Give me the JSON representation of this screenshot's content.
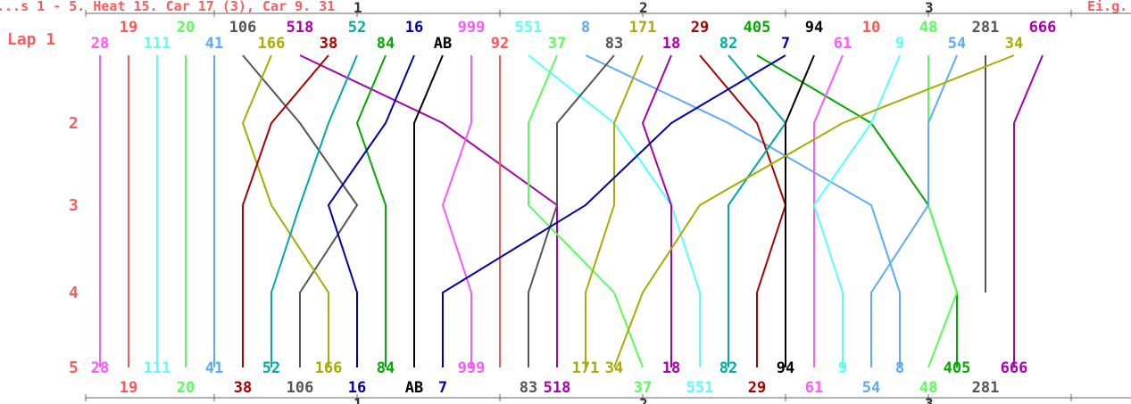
{
  "chart_data": {
    "type": "line",
    "header_left": "...s 1 - 5. Heat 15. Car 17 (3), Car 9. 31",
    "header_right": "Ei.g.",
    "lap_prefix": "Lap",
    "laps": [
      1,
      2,
      3,
      4,
      5
    ],
    "lap_labels": [
      "Lap 1",
      "2",
      "3",
      "4",
      "5"
    ],
    "section_ticks": [
      "1",
      "2",
      "3"
    ],
    "start_order": [
      "28",
      "19",
      "111",
      "20",
      "41",
      "106",
      "166",
      "518",
      "38",
      "52",
      "84",
      "16",
      "AB",
      "999",
      "92",
      "551",
      "37",
      "8",
      "83",
      "171",
      "18",
      "29",
      "82",
      "405",
      "7",
      "94",
      "61",
      "10",
      "9",
      "48",
      "54",
      "281",
      "34",
      "666"
    ],
    "finish_order": [
      "28",
      "19",
      "111",
      "20",
      "41",
      "38",
      "52",
      "106",
      "166",
      "16",
      "84",
      "AB",
      "7",
      "999",
      "92",
      "83",
      "518",
      "171",
      "34",
      "37",
      "18",
      "551",
      "82",
      "29",
      "94",
      "61",
      "9",
      "54",
      "8",
      "48",
      "405",
      "281",
      "666"
    ],
    "series": [
      {
        "name": "28",
        "color": "#ff55ff",
        "positions": [
          1,
          1,
          1,
          1,
          1
        ]
      },
      {
        "name": "19",
        "color": "#ff5555",
        "positions": [
          2,
          2,
          2,
          2,
          2
        ]
      },
      {
        "name": "111",
        "color": "#55ffff",
        "positions": [
          3,
          3,
          3,
          3,
          3
        ]
      },
      {
        "name": "20",
        "color": "#55ff55",
        "positions": [
          4,
          4,
          4,
          4,
          4
        ]
      },
      {
        "name": "41",
        "color": "#5aaaff",
        "positions": [
          5,
          5,
          5,
          5,
          5
        ]
      },
      {
        "name": "106",
        "color": "#555555",
        "positions": [
          6,
          8,
          10,
          8,
          8
        ]
      },
      {
        "name": "166",
        "color": "#aaaa00",
        "positions": [
          7,
          6,
          7,
          9,
          9
        ]
      },
      {
        "name": "518",
        "color": "#aa00aa",
        "positions": [
          8,
          13,
          17,
          17,
          17
        ]
      },
      {
        "name": "38",
        "color": "#aa0000",
        "positions": [
          9,
          7,
          6,
          6,
          6
        ]
      },
      {
        "name": "52",
        "color": "#00aaaa",
        "positions": [
          10,
          9,
          8,
          7,
          7
        ]
      },
      {
        "name": "84",
        "color": "#00aa00",
        "positions": [
          11,
          10,
          11,
          11,
          11
        ]
      },
      {
        "name": "16",
        "color": "#0000aa",
        "positions": [
          12,
          11,
          9,
          10,
          10
        ]
      },
      {
        "name": "AB",
        "color": "#000000",
        "positions": [
          13,
          12,
          12,
          12,
          12
        ]
      },
      {
        "name": "999",
        "color": "#ff55ff",
        "positions": [
          14,
          14,
          13,
          14,
          14
        ]
      },
      {
        "name": "92",
        "color": "#ff5555",
        "positions": [
          15,
          15,
          15,
          15,
          15
        ]
      },
      {
        "name": "551",
        "color": "#55ffff",
        "positions": [
          16,
          19,
          21,
          22,
          22
        ]
      },
      {
        "name": "37",
        "color": "#55ff55",
        "positions": [
          17,
          16,
          16,
          19,
          20
        ]
      },
      {
        "name": "8",
        "color": "#5aaaff",
        "positions": [
          18,
          23,
          28,
          29,
          29
        ]
      },
      {
        "name": "83",
        "color": "#555555",
        "positions": [
          19,
          17,
          17,
          16,
          16
        ]
      },
      {
        "name": "171",
        "color": "#aaaa00",
        "positions": [
          20,
          19,
          19,
          18,
          18
        ]
      },
      {
        "name": "18",
        "color": "#aa00aa",
        "positions": [
          21,
          20,
          21,
          21,
          21
        ]
      },
      {
        "name": "29",
        "color": "#aa0000",
        "positions": [
          22,
          24,
          25,
          24,
          24
        ]
      },
      {
        "name": "82",
        "color": "#00aaaa",
        "positions": [
          23,
          25,
          23,
          23,
          23
        ]
      },
      {
        "name": "405",
        "color": "#00aa00",
        "positions": [
          24,
          28,
          30,
          31,
          31
        ]
      },
      {
        "name": "7",
        "color": "#0000aa",
        "positions": [
          25,
          21,
          18,
          13,
          13
        ]
      },
      {
        "name": "94",
        "color": "#000000",
        "positions": [
          26,
          25,
          25,
          25,
          25
        ]
      },
      {
        "name": "61",
        "color": "#ff55ff",
        "positions": [
          27,
          26,
          26,
          26,
          26
        ]
      },
      {
        "name": "10",
        "color": "#ff5555",
        "positions": [
          28,
          null,
          null,
          null,
          null
        ]
      },
      {
        "name": "9",
        "color": "#55ffff",
        "positions": [
          29,
          28,
          26,
          27,
          27
        ]
      },
      {
        "name": "48",
        "color": "#55ff55",
        "positions": [
          30,
          30,
          30,
          31,
          30
        ]
      },
      {
        "name": "54",
        "color": "#5aaaff",
        "positions": [
          31,
          30,
          30,
          28,
          28
        ]
      },
      {
        "name": "281",
        "color": "#555555",
        "positions": [
          32,
          32,
          32,
          32,
          null
        ]
      },
      {
        "name": "34",
        "color": "#aaaa00",
        "positions": [
          33,
          27,
          22,
          20,
          19
        ]
      },
      {
        "name": "666",
        "color": "#aa00aa",
        "positions": [
          34,
          33,
          33,
          33,
          33
        ]
      }
    ],
    "finish_labels_top": [
      "28",
      "111",
      "41",
      "52",
      "166",
      "84",
      "999",
      "171",
      "34",
      "18",
      "82",
      "94",
      "9",
      "8",
      "405",
      "666"
    ],
    "finish_labels_bottom": [
      "19",
      "20",
      "38",
      "106",
      "16",
      "AB",
      "7",
      "83",
      "518",
      "37",
      "551",
      "29",
      "61",
      "54",
      "48",
      "281"
    ]
  }
}
